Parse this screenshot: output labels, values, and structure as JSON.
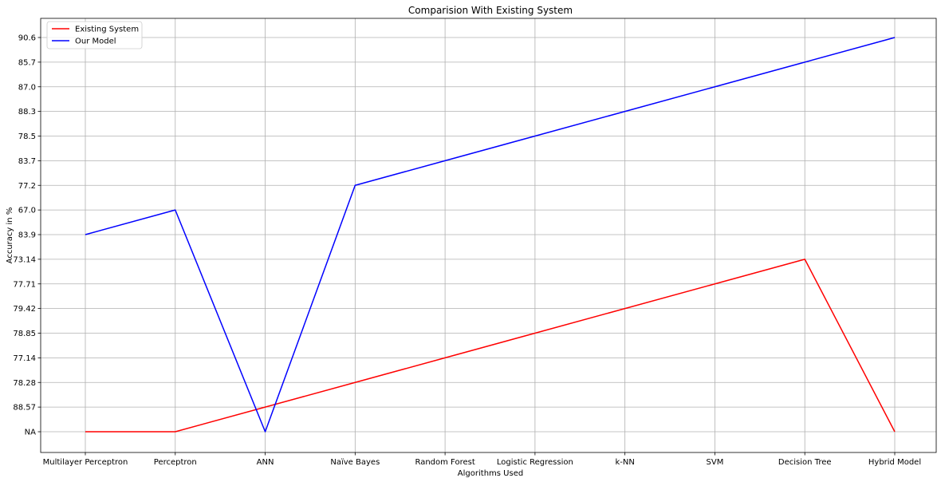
{
  "chart_data": {
    "type": "line",
    "title": "Comparision With Existing System",
    "xlabel": "Algorithms Used",
    "ylabel": "Accuracy in %",
    "categories": [
      "Multilayer Perceptron",
      "Perceptron",
      "ANN",
      "Naïve Bayes",
      "Random Forest",
      "Logistic Regression",
      "k-NN",
      "SVM",
      "Decision Tree",
      "Hybrid Model"
    ],
    "y_categories": [
      "NA",
      "88.57",
      "78.28",
      "77.14",
      "78.85",
      "79.42",
      "77.71",
      "73.14",
      "83.9",
      "67.0",
      "77.2",
      "83.7",
      "78.5",
      "88.3",
      "87.0",
      "85.7",
      "90.6"
    ],
    "series": [
      {
        "name": "Existing System",
        "color": "#ff0000",
        "values": [
          "NA",
          "NA",
          "88.57",
          "78.28",
          "77.14",
          "78.85",
          "79.42",
          "77.71",
          "73.14",
          "NA"
        ]
      },
      {
        "name": "Our Model",
        "color": "#0000ff",
        "values": [
          "83.9",
          "67.0",
          "NA",
          "77.2",
          "83.7",
          "78.5",
          "88.3",
          "87.0",
          "85.7",
          "90.6"
        ]
      }
    ],
    "grid": true,
    "legend_position": "top-left"
  }
}
